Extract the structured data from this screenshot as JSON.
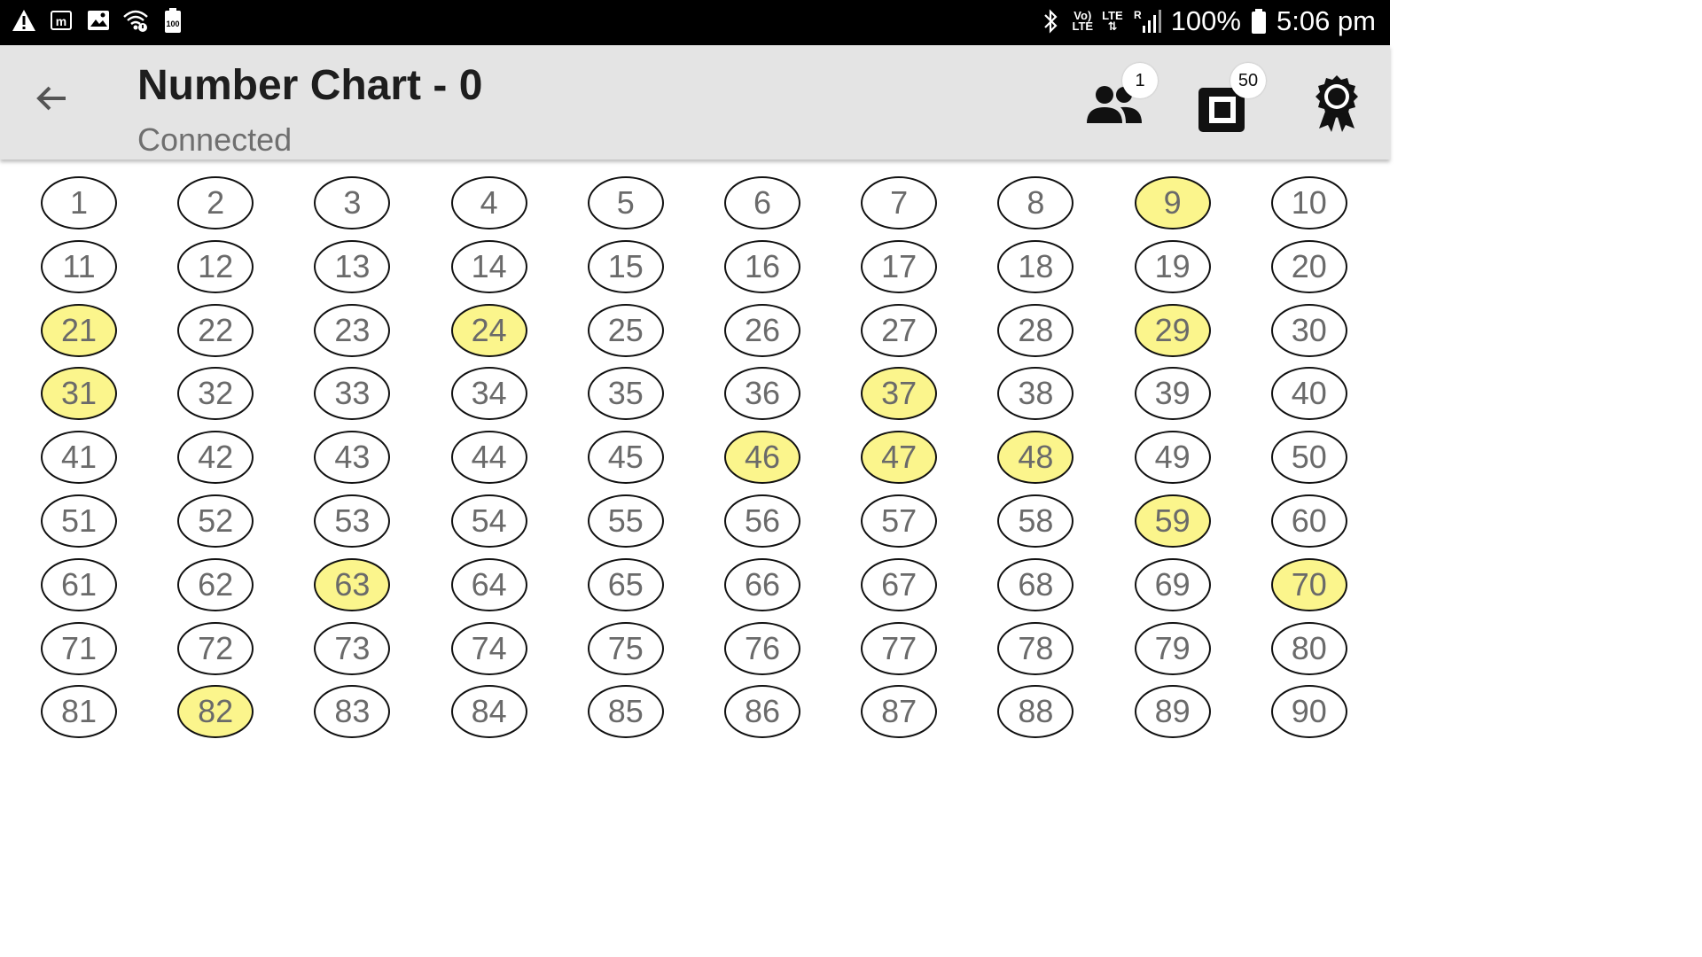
{
  "status_bar": {
    "left_icons": [
      "warning-icon",
      "m-icon",
      "image-icon",
      "wifi-icon",
      "battery-saver-icon"
    ],
    "battery_small_label": "100",
    "bluetooth": "bluetooth-icon",
    "volte_label_top": "Vo)",
    "volte_label_bottom": "LTE",
    "lte_label": "LTE",
    "roaming_label": "R",
    "battery_percent": "100%",
    "time": "5:06 pm"
  },
  "app_bar": {
    "title": "Number Chart - 0",
    "subtitle": "Connected",
    "players_badge": "1",
    "tickets_badge": "50"
  },
  "board": {
    "numbers": [
      1,
      2,
      3,
      4,
      5,
      6,
      7,
      8,
      9,
      10,
      11,
      12,
      13,
      14,
      15,
      16,
      17,
      18,
      19,
      20,
      21,
      22,
      23,
      24,
      25,
      26,
      27,
      28,
      29,
      30,
      31,
      32,
      33,
      34,
      35,
      36,
      37,
      38,
      39,
      40,
      41,
      42,
      43,
      44,
      45,
      46,
      47,
      48,
      49,
      50,
      51,
      52,
      53,
      54,
      55,
      56,
      57,
      58,
      59,
      60,
      61,
      62,
      63,
      64,
      65,
      66,
      67,
      68,
      69,
      70,
      71,
      72,
      73,
      74,
      75,
      76,
      77,
      78,
      79,
      80,
      81,
      82,
      83,
      84,
      85,
      86,
      87,
      88,
      89,
      90
    ],
    "called": [
      9,
      21,
      24,
      29,
      31,
      37,
      46,
      47,
      48,
      59,
      63,
      70,
      82
    ],
    "called_color": "#fbf58c",
    "uncalled_color": "#ffffff"
  }
}
